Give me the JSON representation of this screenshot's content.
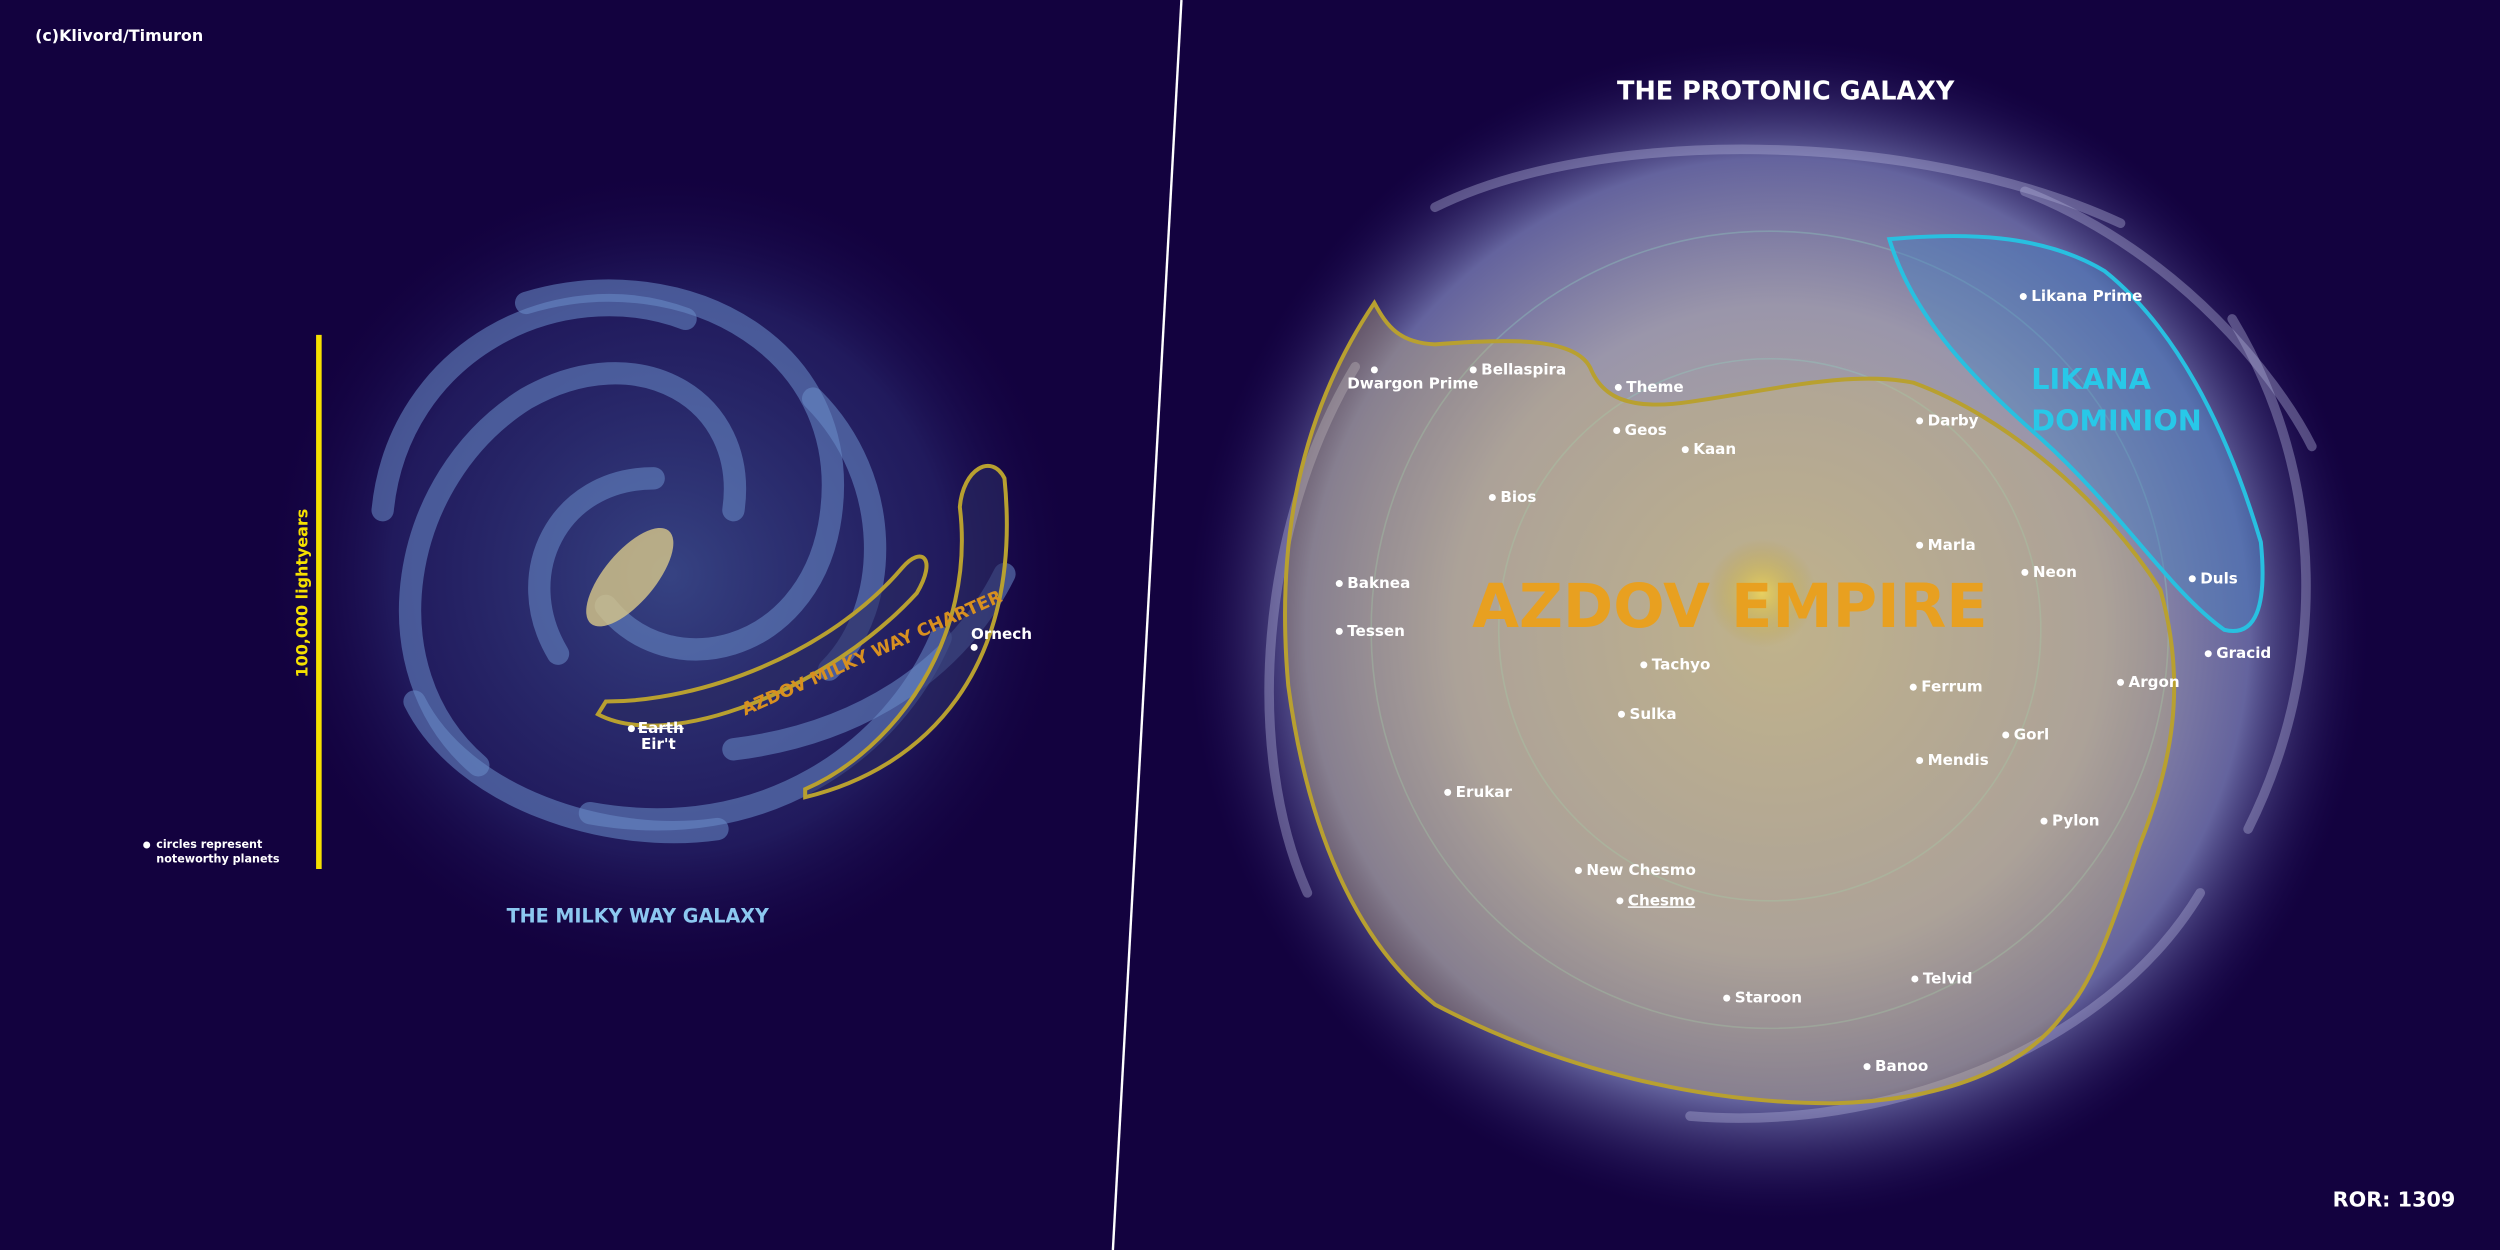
{
  "credit": "(c)Klivord/Timuron",
  "milky_way": {
    "title": "THE MILKY WAY GALAXY",
    "scale": "100,000 lightyears",
    "legend": [
      "circles represent",
      "noteworthy planets"
    ],
    "charter": "AZDOV MILKY WAY CHARTER",
    "earth": "Earth",
    "earth_new": "Eir't",
    "ornech": "Ornech"
  },
  "protonic": {
    "title": "THE PROTONIC GALAXY",
    "empire": "AZDOV EMPIRE",
    "dominion": [
      "LIKANA",
      "DOMINION"
    ],
    "planets": [
      "Likana Prime",
      "Dwargon Prime",
      "Bellaspira",
      "Theme",
      "Geos",
      "Kaan",
      "Darby",
      "Bios",
      "Marla",
      "Neon",
      "Duls",
      "Baknea",
      "Tessen",
      "Gracid",
      "Tachyo",
      "Ferrum",
      "Argon",
      "Sulka",
      "Gorl",
      "Mendis",
      "Erukar",
      "Pylon",
      "New Chesmo",
      "Chesmo",
      "Telvid",
      "Staroon",
      "Banoo"
    ]
  },
  "era": "ROR: 1309"
}
